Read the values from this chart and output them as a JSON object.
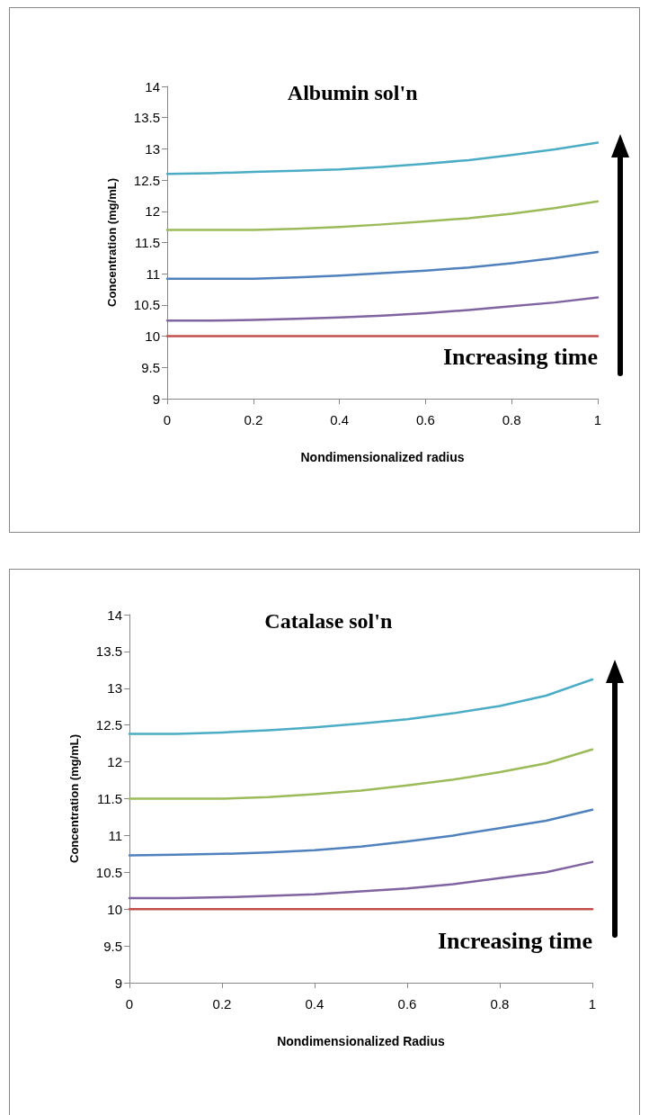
{
  "chart_data": [
    {
      "type": "line",
      "title": "Albumin sol'n",
      "xlabel": "Nondimensionalized radius",
      "ylabel": "Concentration (mg/mL)",
      "annotations": [
        "Increasing time"
      ],
      "x": [
        0,
        0.1,
        0.2,
        0.3,
        0.4,
        0.5,
        0.6,
        0.7,
        0.8,
        0.9,
        1
      ],
      "xlim": [
        0,
        1
      ],
      "xticks": [
        0,
        0.2,
        0.4,
        0.6,
        0.8,
        1
      ],
      "ylim": [
        9,
        14
      ],
      "yticks": [
        9,
        9.5,
        10,
        10.5,
        11,
        11.5,
        12,
        12.5,
        13,
        13.5,
        14
      ],
      "grid": false,
      "marker": "none",
      "series": [
        {
          "color": "#c0504d",
          "values": [
            10,
            10,
            10,
            10,
            10,
            10,
            10,
            10,
            10,
            10,
            10
          ]
        },
        {
          "color": "#8064a2",
          "values": [
            10.25,
            10.25,
            10.26,
            10.28,
            10.3,
            10.33,
            10.37,
            10.42,
            10.48,
            10.54,
            10.62
          ]
        },
        {
          "color": "#4f81bd",
          "values": [
            10.92,
            10.92,
            10.92,
            10.94,
            10.97,
            11.01,
            11.05,
            11.1,
            11.17,
            11.25,
            11.35
          ]
        },
        {
          "color": "#9bbb59",
          "values": [
            11.7,
            11.7,
            11.7,
            11.72,
            11.75,
            11.79,
            11.84,
            11.89,
            11.96,
            12.05,
            12.16
          ]
        },
        {
          "color": "#4bacc6",
          "values": [
            12.6,
            12.61,
            12.63,
            12.65,
            12.67,
            12.71,
            12.76,
            12.82,
            12.9,
            12.99,
            13.1
          ]
        }
      ]
    },
    {
      "type": "line",
      "title": "Catalase sol'n",
      "xlabel": "Nondimensionalized Radius",
      "ylabel": "Concentration (mg/mL)",
      "annotations": [
        "Increasing time"
      ],
      "x": [
        0,
        0.1,
        0.2,
        0.3,
        0.4,
        0.5,
        0.6,
        0.7,
        0.8,
        0.9,
        1
      ],
      "xlim": [
        0,
        1
      ],
      "xticks": [
        0,
        0.2,
        0.4,
        0.6,
        0.8,
        1
      ],
      "ylim": [
        9,
        14
      ],
      "yticks": [
        9,
        9.5,
        10,
        10.5,
        11,
        11.5,
        12,
        12.5,
        13,
        13.5,
        14
      ],
      "grid": false,
      "marker": "none",
      "series": [
        {
          "color": "#c0504d",
          "values": [
            10,
            10,
            10,
            10,
            10,
            10,
            10,
            10,
            10,
            10,
            10
          ]
        },
        {
          "color": "#8064a2",
          "values": [
            10.15,
            10.15,
            10.16,
            10.18,
            10.2,
            10.24,
            10.28,
            10.34,
            10.42,
            10.5,
            10.64
          ]
        },
        {
          "color": "#4f81bd",
          "values": [
            10.73,
            10.74,
            10.75,
            10.77,
            10.8,
            10.85,
            10.92,
            11.0,
            11.1,
            11.2,
            11.35
          ]
        },
        {
          "color": "#9bbb59",
          "values": [
            11.5,
            11.5,
            11.5,
            11.52,
            11.56,
            11.61,
            11.68,
            11.76,
            11.86,
            11.98,
            12.17
          ]
        },
        {
          "color": "#4bacc6",
          "values": [
            12.38,
            12.38,
            12.4,
            12.43,
            12.47,
            12.52,
            12.58,
            12.66,
            12.76,
            12.9,
            13.12
          ]
        }
      ]
    }
  ]
}
